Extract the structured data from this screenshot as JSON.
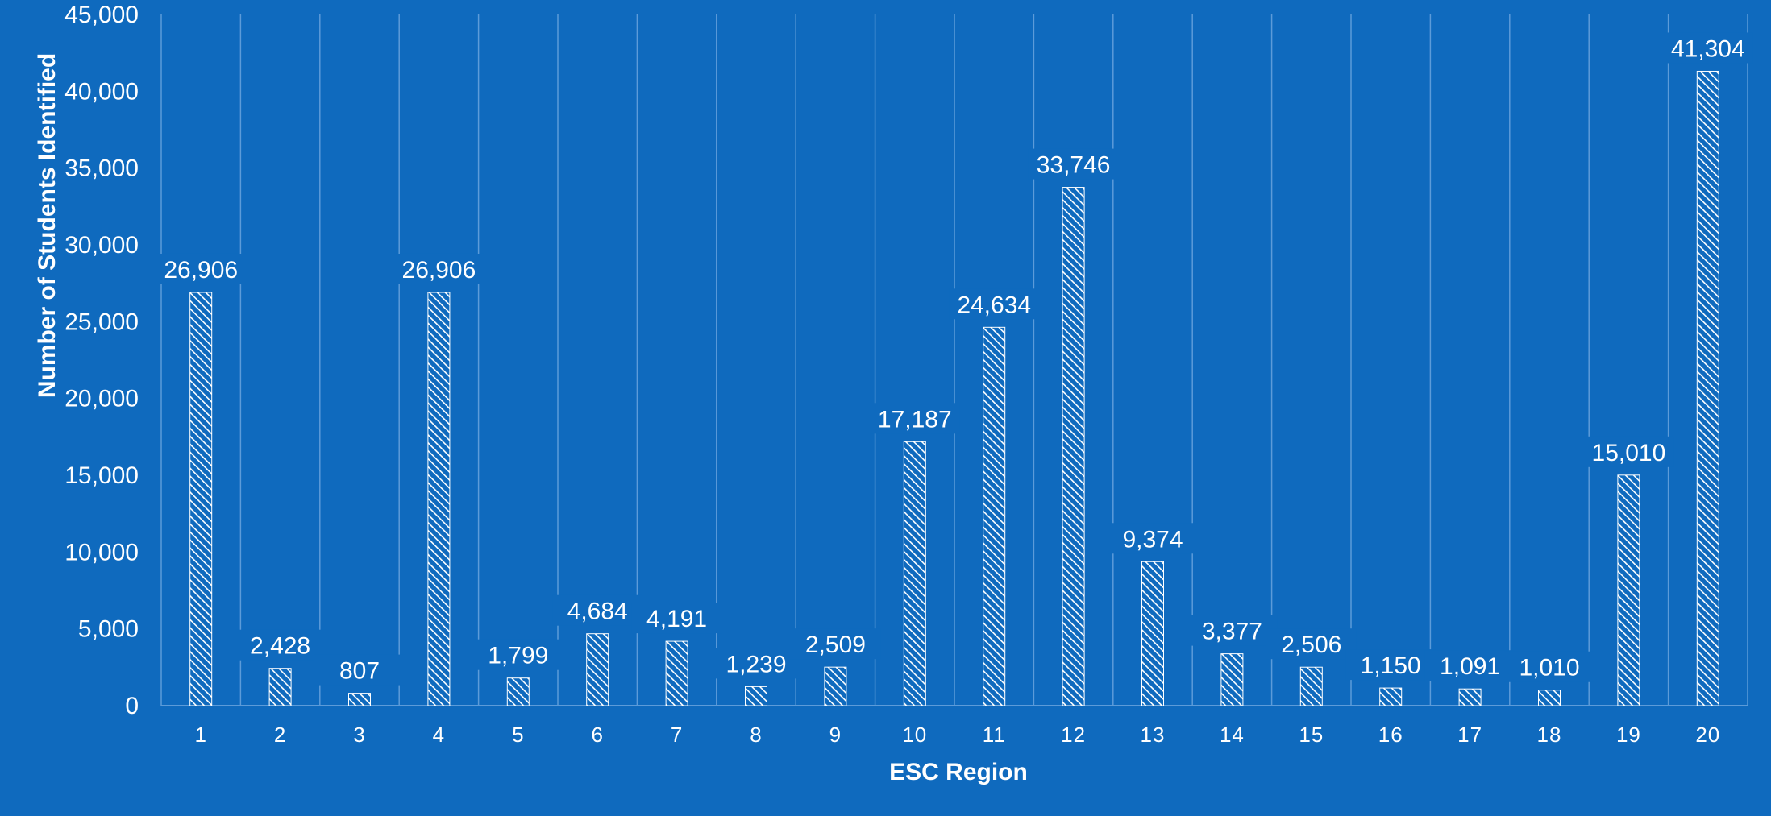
{
  "colors": {
    "background": "#0F6ABE",
    "gridline": "#5C9BD9",
    "bar_pattern": "#FFFFFF",
    "text": "#FFFFFF"
  },
  "chart_data": {
    "type": "bar",
    "xlabel": "ESC Region",
    "ylabel": "Number of Students Identified",
    "ylim": [
      0,
      45000
    ],
    "y_ticks": [
      0,
      5000,
      10000,
      15000,
      20000,
      25000,
      30000,
      35000,
      40000,
      45000
    ],
    "y_tick_labels": [
      "0",
      "5,000",
      "10,000",
      "15,000",
      "20,000",
      "25,000",
      "30,000",
      "35,000",
      "40,000",
      "45,000"
    ],
    "grid": true,
    "categories": [
      "1",
      "2",
      "3",
      "4",
      "5",
      "6",
      "7",
      "8",
      "9",
      "10",
      "11",
      "12",
      "13",
      "14",
      "15",
      "16",
      "17",
      "18",
      "19",
      "20"
    ],
    "values": [
      26906,
      2428,
      807,
      26906,
      1799,
      4684,
      4191,
      1239,
      2509,
      17187,
      24634,
      33746,
      9374,
      3377,
      2506,
      1150,
      1091,
      1010,
      15010,
      41304
    ],
    "data_labels": [
      "26,906",
      "2,428",
      "807",
      "26,906",
      "1,799",
      "4,684",
      "4,191",
      "1,239",
      "2,509",
      "17,187",
      "24,634",
      "33,746",
      "9,374",
      "3,377",
      "2,506",
      "1,150",
      "1,091",
      "1,010",
      "15,010",
      "41,304"
    ]
  }
}
